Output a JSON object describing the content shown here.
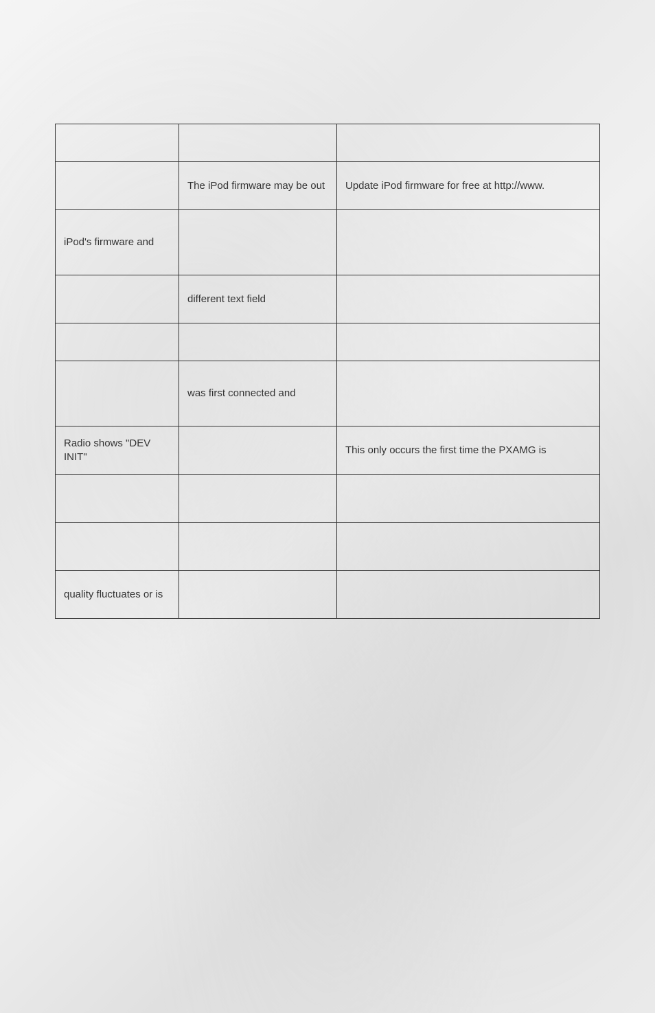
{
  "table": {
    "rows": [
      {
        "col1": "",
        "col2": "",
        "col3": "",
        "height": "row-short"
      },
      {
        "col1": "",
        "col2": "The iPod firmware may be out",
        "col3": "Update iPod firmware for free at http://www.",
        "height": "row-medium"
      },
      {
        "col1": "iPod's firmware and",
        "col2": "",
        "col3": "",
        "height": "row-xtall"
      },
      {
        "col1": "",
        "col2": "different text field",
        "col3": "",
        "height": "row-medium"
      },
      {
        "col1": "",
        "col2": "",
        "col3": "",
        "height": "row-short"
      },
      {
        "col1": "",
        "col2": "was first connected and",
        "col3": "",
        "height": "row-xtall"
      },
      {
        "col1": "Radio shows \"DEV INIT\"",
        "col2": "",
        "col3": "This only occurs the first time the PXAMG is",
        "height": "row-medium"
      },
      {
        "col1": "",
        "col2": "",
        "col3": "",
        "height": "row-medium"
      },
      {
        "col1": "",
        "col2": "",
        "col3": "",
        "height": "row-medium"
      },
      {
        "col1": "quality fluctuates or is",
        "col2": "",
        "col3": "",
        "height": "row-medium"
      }
    ]
  },
  "colors": {
    "border": "#333333",
    "text": "#333333",
    "bg_light": "#f5f5f5",
    "bg_dark": "#e0e0e0"
  }
}
